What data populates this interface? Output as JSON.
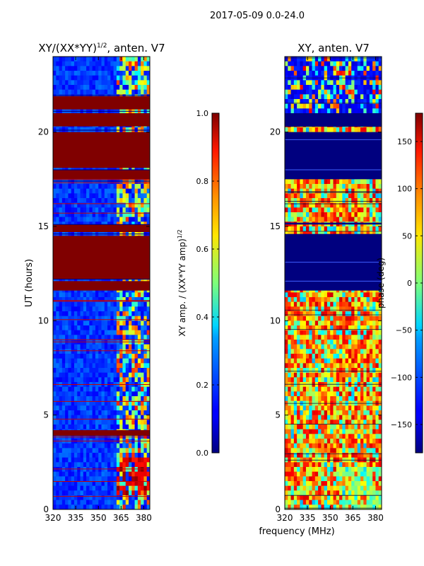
{
  "chart_data": {
    "type": "heatmap",
    "suptitle": "2017-05-09 0.0-24.0",
    "panels": [
      {
        "id": "amp",
        "title_main": "XY/(XX*YY)",
        "title_sup": "1/2",
        "title_tail": ", anten. V7",
        "xlim": [
          320,
          384
        ],
        "ylim": [
          0,
          24
        ],
        "xticks": [
          320,
          335,
          350,
          365,
          380
        ],
        "yticks": [
          0,
          5,
          10,
          15,
          20
        ],
        "ylabel": "UT (hours)",
        "colorbar": {
          "range": [
            0.0,
            1.0
          ],
          "ticks": [
            "0.0",
            "0.2",
            "0.4",
            "0.6",
            "0.8",
            "1.0"
          ],
          "tick_values": [
            0.0,
            0.2,
            0.4,
            0.6,
            0.8,
            1.0
          ],
          "label_main": "XY amp. / (XX*YY amp)",
          "label_sup": "1/2"
        },
        "saturated_bands_hours": [
          [
            11.6,
            12.1
          ],
          [
            12.2,
            14.5
          ],
          [
            14.7,
            15.1
          ],
          [
            17.5,
            18.0
          ],
          [
            18.1,
            20.0
          ],
          [
            20.3,
            21.0
          ],
          [
            21.2,
            21.9
          ],
          [
            3.9,
            4.2
          ]
        ]
      },
      {
        "id": "phase",
        "title_main": "XY, anten. V7",
        "xlim": [
          320,
          384
        ],
        "ylim": [
          0,
          24
        ],
        "xticks": [
          320,
          335,
          350,
          365,
          380
        ],
        "yticks": [
          0,
          5,
          10,
          15,
          20
        ],
        "colorbar": {
          "range": [
            -180,
            180
          ],
          "ticks": [
            "−150",
            "−100",
            "−50",
            "0",
            "50",
            "100",
            "150"
          ],
          "tick_values": [
            -150,
            -100,
            -50,
            0,
            50,
            100,
            150
          ],
          "label": "phase (deg)"
        },
        "masked_bands_hours": [
          [
            11.6,
            14.6
          ],
          [
            17.5,
            20.0
          ],
          [
            15.1,
            15.2
          ],
          [
            20.3,
            21.0
          ]
        ]
      }
    ],
    "shared_xlabel": "frequency (MHz)",
    "colormap": "jet"
  }
}
